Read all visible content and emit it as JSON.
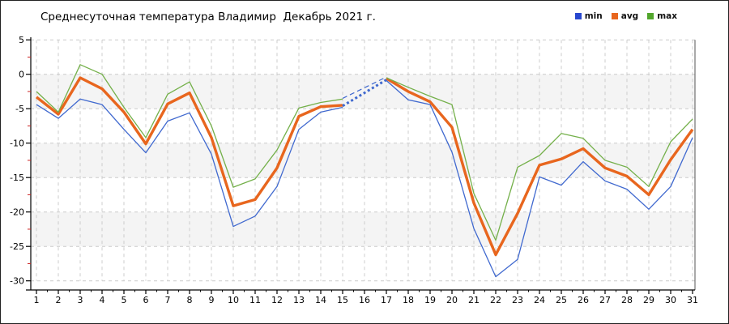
{
  "title": "Среднесуточная температура Владимир  Декабрь 2021 г.",
  "legend": [
    {
      "label": "min",
      "color": "#2747cf"
    },
    {
      "label": "avg",
      "color": "#e8661e"
    },
    {
      "label": "max",
      "color": "#52a62c"
    }
  ],
  "axes": {
    "y_ticks": [
      5,
      0,
      -5,
      -10,
      -15,
      -20,
      -25,
      -30
    ],
    "y_minor_ticks": [
      2.5,
      -2.5,
      -7.5,
      -12.5,
      -17.5,
      -22.5,
      -27.5
    ],
    "y_minor_color": "#cc2222",
    "ylim": [
      -30,
      5
    ],
    "x_ticks_label_every": 1
  },
  "style": {
    "band_fill": "#f4f4f4",
    "band_pairs": [
      [
        0,
        -5
      ],
      [
        -10,
        -15
      ],
      [
        -20,
        -25
      ]
    ],
    "gridline_color": "#cccccc",
    "axis_color": "#000000",
    "right_border_color": "#555555"
  },
  "chart_data": {
    "type": "line",
    "title": "Среднесуточная температура Владимир  Декабрь 2021 г.",
    "xlabel": "",
    "ylabel": "",
    "x": [
      1,
      2,
      3,
      4,
      5,
      6,
      7,
      8,
      9,
      10,
      11,
      12,
      13,
      14,
      15,
      16,
      17,
      18,
      19,
      20,
      21,
      22,
      23,
      24,
      25,
      26,
      27,
      28,
      29,
      30,
      31
    ],
    "ylim": [
      -30,
      5
    ],
    "grid": "dashed",
    "legend_position": "top-right",
    "note": "day 16 has no solid data; gap bridged by blue dashed segments between day 15 and day 17",
    "series": [
      {
        "name": "min",
        "color": "#4069cf",
        "width": 1.3,
        "values": [
          -4.4,
          -6.4,
          -3.6,
          -4.4,
          -8.0,
          -11.4,
          -6.8,
          -5.6,
          -11.6,
          -22.1,
          -20.6,
          -16.3,
          -8.0,
          -5.5,
          -4.8,
          null,
          -0.9,
          -3.7,
          -4.4,
          -11.3,
          -22.4,
          -29.4,
          -26.9,
          -14.9,
          -16.1,
          -12.7,
          -15.5,
          -16.7,
          -19.6,
          -16.3,
          -9.2
        ]
      },
      {
        "name": "avg",
        "color": "#e8661e",
        "width": 3.4,
        "values": [
          -3.3,
          -5.8,
          -0.5,
          -2.1,
          -5.5,
          -10.1,
          -4.3,
          -2.7,
          -9.2,
          -19.1,
          -18.2,
          -13.6,
          -6.1,
          -4.7,
          -4.5,
          null,
          -0.6,
          -2.5,
          -4.0,
          -7.7,
          -18.7,
          -26.2,
          -20.2,
          -13.2,
          -12.3,
          -10.8,
          -13.6,
          -14.8,
          -17.5,
          -12.4,
          -8.0
        ]
      },
      {
        "name": "max",
        "color": "#74b04a",
        "width": 1.3,
        "values": [
          -2.5,
          -5.5,
          1.4,
          0.0,
          -4.8,
          -9.2,
          -2.9,
          -1.1,
          -7.5,
          -16.4,
          -15.2,
          -11.0,
          -4.9,
          -4.1,
          -3.6,
          null,
          -0.5,
          -1.9,
          -3.2,
          -4.4,
          -17.3,
          -24.1,
          -13.5,
          -11.8,
          -8.6,
          -9.3,
          -12.5,
          -13.5,
          -16.3,
          -9.8,
          -6.5
        ]
      }
    ],
    "dashed_segments": [
      {
        "from_day": 15,
        "from_value": -3.5,
        "to_day": 17,
        "to_value": -0.4,
        "color": "#4069cf",
        "width": 1.2,
        "dash": "6,4"
      },
      {
        "from_day": 15,
        "from_value": -4.6,
        "to_day": 17,
        "to_value": -0.8,
        "color": "#4069cf",
        "width": 3.0,
        "dash": "3,3"
      }
    ]
  }
}
